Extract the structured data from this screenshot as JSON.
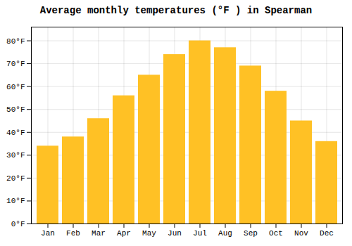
{
  "chart_data": {
    "type": "bar",
    "title": "Average monthly temperatures (°F ) in Spearman",
    "categories": [
      "Jan",
      "Feb",
      "Mar",
      "Apr",
      "May",
      "Jun",
      "Jul",
      "Aug",
      "Sep",
      "Oct",
      "Nov",
      "Dec"
    ],
    "values": [
      34,
      38,
      46,
      56,
      65,
      74,
      80,
      77,
      69,
      58,
      45,
      36
    ],
    "color": "#FFC125",
    "ylim": [
      0,
      86
    ],
    "yticks": [
      {
        "value": 0,
        "label": "0°F"
      },
      {
        "value": 10,
        "label": "10°F"
      },
      {
        "value": 20,
        "label": "20°F"
      },
      {
        "value": 30,
        "label": "30°F"
      },
      {
        "value": 40,
        "label": "40°F"
      },
      {
        "value": 50,
        "label": "50°F"
      },
      {
        "value": 60,
        "label": "60°F"
      },
      {
        "value": 70,
        "label": "70°F"
      },
      {
        "value": 80,
        "label": "80°F"
      }
    ],
    "grid": true
  }
}
